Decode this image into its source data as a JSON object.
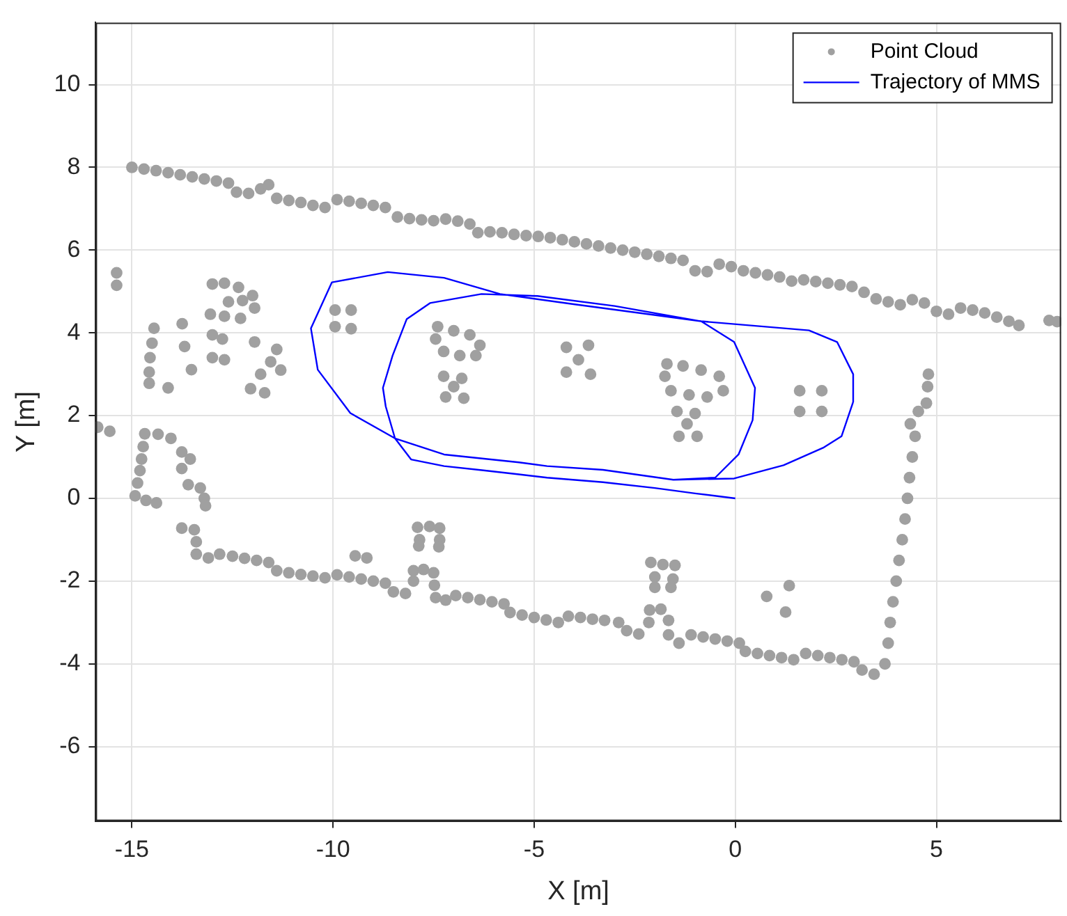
{
  "chart_data": {
    "type": "scatter",
    "xlabel": "X [m]",
    "ylabel": "Y [m]",
    "xlim": [
      -15.9,
      8.1
    ],
    "ylim": [
      -7.8,
      11.5
    ],
    "xticks": [
      -15,
      -10,
      -5,
      0,
      5
    ],
    "yticks": [
      -6,
      -4,
      -2,
      0,
      2,
      4,
      6,
      8,
      10
    ],
    "grid": true,
    "legend": "top right",
    "series": [
      {
        "name": "Point Cloud",
        "type": "scatter",
        "marker": "circle",
        "color": "#a0a0a0",
        "x": [
          -15.0,
          -14.7,
          -14.4,
          -14.1,
          -13.8,
          -13.5,
          -13.2,
          -12.9,
          -12.6,
          -12.4,
          -12.1,
          -11.8,
          -11.6,
          -11.4,
          -11.1,
          -10.8,
          -10.5,
          -10.2,
          -9.9,
          -9.6,
          -9.3,
          -9.0,
          -8.7,
          -8.4,
          -8.1,
          -7.8,
          -7.5,
          -7.2,
          -6.9,
          -6.6,
          -6.4,
          -6.1,
          -5.8,
          -5.5,
          -5.2,
          -4.9,
          -4.6,
          -4.3,
          -4.0,
          -3.7,
          -3.4,
          -3.1,
          -2.8,
          -2.5,
          -2.2,
          -1.9,
          -1.6,
          -1.3,
          -1.0,
          -0.7,
          -0.4,
          -0.1,
          0.2,
          0.5,
          0.8,
          1.1,
          1.4,
          1.7,
          2.0,
          2.3,
          2.6,
          2.9,
          3.2,
          3.5,
          3.8,
          4.1,
          4.4,
          4.7,
          5.0,
          5.3,
          5.6,
          5.9,
          6.2,
          6.5,
          6.8,
          7.05,
          7.8,
          8.0,
          -13.76,
          -13.45,
          -13.4,
          -13.4,
          -13.1,
          -12.82,
          -12.5,
          -12.2,
          -11.9,
          -11.6,
          -11.4,
          -11.1,
          -10.8,
          -10.5,
          -10.2,
          -9.9,
          -9.6,
          -9.3,
          -9.0,
          -8.7,
          -8.5,
          -8.2,
          -8.0,
          -8.0,
          -7.75,
          -7.5,
          -7.48,
          -7.45,
          -7.2,
          -6.95,
          -6.65,
          -6.35,
          -6.05,
          -5.75,
          -5.6,
          -5.3,
          -5.0,
          -4.7,
          -4.4,
          -4.15,
          -3.85,
          -3.55,
          -3.25,
          -2.9,
          -2.7,
          -2.4,
          -2.15,
          -2.13,
          -1.85,
          -1.66,
          -1.66,
          -1.4,
          -1.1,
          -0.8,
          -0.5,
          -0.2,
          0.1,
          0.25,
          0.55,
          0.85,
          1.15,
          1.45,
          1.75,
          2.05,
          2.35,
          2.65,
          2.95,
          3.15,
          3.45,
          3.72,
          3.8,
          3.85,
          3.92,
          4.0,
          4.07,
          4.15,
          4.22,
          4.28,
          4.33,
          4.4,
          4.47,
          4.35,
          4.55,
          4.75,
          4.78,
          4.8,
          -15.38,
          -15.38,
          -15.85,
          -15.55,
          -14.45,
          -14.5,
          -14.55,
          -14.57,
          -14.57,
          -14.1,
          -14.68,
          -14.35,
          -14.03,
          -14.72,
          -14.76,
          -14.8,
          -14.86,
          -14.92,
          -14.65,
          -14.39,
          -13.76,
          -13.55,
          -13.76,
          -13.6,
          -13.3,
          -13.2,
          -13.17,
          -13.0,
          -12.7,
          -12.35,
          -12.0,
          -11.95,
          -12.3,
          -12.7,
          -13.05,
          -12.6,
          -12.25,
          -13.0,
          -12.75,
          -13.0,
          -12.7,
          -13.75,
          -13.69,
          -13.52,
          -11.4,
          -11.55,
          -11.8,
          -12.05,
          -11.7,
          -11.3,
          -11.95,
          -9.95,
          -9.55,
          -9.95,
          -9.55,
          -7.4,
          -7.0,
          -6.6,
          -6.35,
          -6.45,
          -6.85,
          -7.25,
          -7.45,
          -7.25,
          -6.8,
          -7.2,
          -6.75,
          -7.0,
          -4.2,
          -3.65,
          -4.2,
          -3.6,
          -3.9,
          -1.7,
          -1.3,
          -0.85,
          -0.4,
          -0.3,
          -0.7,
          -1.15,
          -1.6,
          -1.75,
          -1.45,
          -1.0,
          -1.4,
          -0.95,
          -1.2,
          1.6,
          2.15,
          1.6,
          2.15,
          -9.45,
          -9.16,
          -7.9,
          -7.6,
          -7.35,
          -7.85,
          -7.35,
          -7.87,
          -7.37,
          -2.1,
          -1.8,
          -1.5,
          -2.0,
          -2.0,
          -1.55,
          -1.6,
          0.78,
          1.34,
          1.25
        ],
        "values": [
          8.0,
          7.96,
          7.92,
          7.87,
          7.82,
          7.77,
          7.72,
          7.67,
          7.62,
          7.4,
          7.37,
          7.48,
          7.58,
          7.25,
          7.2,
          7.15,
          7.08,
          7.03,
          7.22,
          7.18,
          7.13,
          7.08,
          7.03,
          6.8,
          6.76,
          6.73,
          6.71,
          6.75,
          6.7,
          6.63,
          6.42,
          6.44,
          6.42,
          6.38,
          6.35,
          6.33,
          6.3,
          6.25,
          6.2,
          6.15,
          6.1,
          6.05,
          6.0,
          5.95,
          5.9,
          5.85,
          5.8,
          5.75,
          5.5,
          5.48,
          5.66,
          5.6,
          5.5,
          5.45,
          5.4,
          5.35,
          5.25,
          5.28,
          5.24,
          5.2,
          5.16,
          5.12,
          4.98,
          4.82,
          4.75,
          4.68,
          4.8,
          4.72,
          4.52,
          4.45,
          4.6,
          4.55,
          4.48,
          4.38,
          4.28,
          4.18,
          4.3,
          4.27,
          -0.72,
          -0.76,
          -1.05,
          -1.35,
          -1.44,
          -1.35,
          -1.4,
          -1.45,
          -1.5,
          -1.55,
          -1.75,
          -1.8,
          -1.84,
          -1.88,
          -1.92,
          -1.85,
          -1.9,
          -1.95,
          -2.0,
          -2.05,
          -2.26,
          -2.3,
          -2.0,
          -1.75,
          -1.72,
          -1.8,
          -2.1,
          -2.4,
          -2.46,
          -2.35,
          -2.4,
          -2.45,
          -2.5,
          -2.55,
          -2.76,
          -2.82,
          -2.88,
          -2.94,
          -3.0,
          -2.85,
          -2.88,
          -2.92,
          -2.95,
          -3.0,
          -3.2,
          -3.28,
          -3.0,
          -2.7,
          -2.68,
          -2.95,
          -3.3,
          -3.5,
          -3.3,
          -3.35,
          -3.4,
          -3.45,
          -3.5,
          -3.7,
          -3.75,
          -3.8,
          -3.85,
          -3.9,
          -3.75,
          -3.8,
          -3.85,
          -3.9,
          -3.95,
          -4.15,
          -4.25,
          -4.0,
          -3.5,
          -3.0,
          -2.5,
          -2.0,
          -1.5,
          -1.0,
          -0.5,
          0.0,
          0.5,
          1.0,
          1.5,
          1.8,
          2.1,
          2.3,
          2.7,
          3.0,
          5.45,
          5.15,
          1.72,
          1.62,
          4.11,
          3.75,
          3.4,
          3.05,
          2.78,
          2.67,
          1.56,
          1.55,
          1.45,
          1.25,
          0.95,
          0.67,
          0.37,
          0.06,
          -0.05,
          -0.11,
          1.12,
          0.95,
          0.72,
          0.33,
          0.25,
          0.0,
          -0.18,
          5.18,
          5.2,
          5.1,
          4.9,
          4.6,
          4.35,
          4.4,
          4.45,
          4.75,
          4.78,
          3.95,
          3.85,
          3.4,
          3.35,
          4.22,
          3.67,
          3.11,
          3.6,
          3.3,
          3.0,
          2.65,
          2.55,
          3.1,
          3.78,
          4.55,
          4.55,
          4.15,
          4.1,
          4.15,
          4.05,
          3.95,
          3.7,
          3.45,
          3.45,
          3.55,
          3.85,
          2.95,
          2.9,
          2.45,
          2.42,
          2.7,
          3.65,
          3.7,
          3.05,
          3.0,
          3.35,
          3.25,
          3.2,
          3.1,
          2.95,
          2.6,
          2.45,
          2.5,
          2.6,
          2.95,
          2.1,
          2.05,
          1.5,
          1.5,
          1.8,
          2.6,
          2.6,
          2.1,
          2.1,
          -1.39,
          -1.44,
          -0.7,
          -0.68,
          -0.72,
          -1.0,
          -1.0,
          -1.15,
          -1.17,
          -1.55,
          -1.6,
          -1.62,
          -1.9,
          -2.15,
          -1.95,
          -2.15,
          -2.37,
          -2.11,
          -2.75
        ]
      },
      {
        "name": "Trajectory of MMS",
        "type": "line",
        "marker": "none",
        "line_style": "solid",
        "color": "#0000ff",
        "x": [
          0,
          -1.0,
          -2.0,
          -3.29,
          -4.68,
          -5.38,
          -6.3,
          -7.24,
          -8.06,
          -8.46,
          -8.69,
          -8.76,
          -8.52,
          -8.17,
          -7.59,
          -6.31,
          -4.92,
          -3.0,
          -0.85,
          -0.03,
          0.49,
          0.43,
          0.08,
          -0.5,
          -1.54,
          -3.29,
          -4.68,
          -5.38,
          -7.24,
          -8.46,
          -9.57,
          -10.38,
          -10.55,
          -10.03,
          -8.64,
          -7.24,
          -5.85,
          -3.99,
          -0.85,
          1.83,
          2.53,
          2.93,
          2.93,
          2.64,
          2.18,
          1.2,
          -0.03,
          -1.54
        ],
        "values": [
          0,
          0.12,
          0.25,
          0.39,
          0.5,
          0.58,
          0.68,
          0.78,
          0.94,
          1.45,
          2.22,
          2.67,
          3.45,
          4.33,
          4.72,
          4.94,
          4.89,
          4.65,
          4.28,
          3.78,
          2.67,
          1.89,
          1.06,
          0.5,
          0.45,
          0.69,
          0.78,
          0.87,
          1.06,
          1.45,
          2.06,
          3.11,
          4.11,
          5.22,
          5.47,
          5.33,
          4.94,
          4.69,
          4.28,
          4.06,
          3.78,
          3.0,
          2.33,
          1.5,
          1.22,
          0.8,
          0.48,
          0.45
        ]
      }
    ]
  }
}
